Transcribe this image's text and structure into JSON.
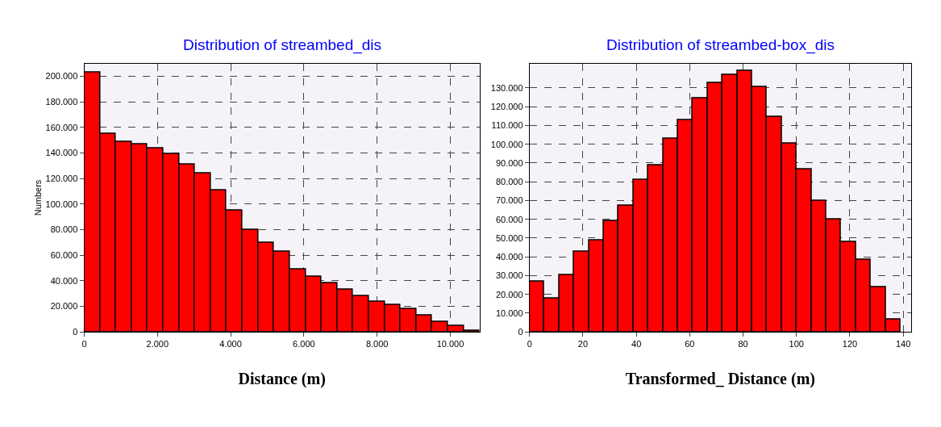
{
  "chart_data": [
    {
      "type": "histogram",
      "title": "Distribution of streambed_dis",
      "xlabel": "Distance (m)",
      "ylabel": "Numbers",
      "color": "#ff0000",
      "grid": true,
      "bins": [
        0,
        432,
        864,
        1296,
        1728,
        2160,
        2592,
        3024,
        3456,
        3888,
        4320,
        4752,
        5184,
        5616,
        6048,
        6480,
        6912,
        7344,
        7776,
        8208,
        8640,
        9072,
        9504,
        9936,
        10368,
        10800
      ],
      "values": [
        203000,
        155000,
        149000,
        147000,
        144000,
        139000,
        131000,
        124000,
        111000,
        95000,
        80000,
        70000,
        63000,
        49000,
        43000,
        38000,
        33000,
        28000,
        24000,
        21000,
        18000,
        13000,
        8000,
        5000,
        1000
      ],
      "xlim": [
        0,
        10800
      ],
      "ylim": [
        0,
        210000
      ],
      "xticks": [
        0,
        {
          "value": 2000,
          "label": "2.000"
        },
        {
          "value": 4000,
          "label": "4.000"
        },
        {
          "value": 6000,
          "label": "6.000"
        },
        {
          "value": 8000,
          "label": "8.000"
        },
        {
          "value": 10000,
          "label": "10.000"
        }
      ],
      "yticks": [
        0,
        {
          "value": 20000,
          "label": "20.000"
        },
        {
          "value": 40000,
          "label": "40.000"
        },
        {
          "value": 60000,
          "label": "60.000"
        },
        {
          "value": 80000,
          "label": "80.000"
        },
        {
          "value": 100000,
          "label": "100.000"
        },
        {
          "value": 120000,
          "label": "120.000"
        },
        {
          "value": 140000,
          "label": "140.000"
        },
        {
          "value": 160000,
          "label": "160.000"
        },
        {
          "value": 180000,
          "label": "180.000"
        },
        {
          "value": 200000,
          "label": "200.000"
        }
      ]
    },
    {
      "type": "histogram",
      "title": "Distribution of streambed-box_dis",
      "xlabel": "Transformed_ Distance (m)",
      "color": "#ff0000",
      "grid": true,
      "bins": [
        0,
        5.56,
        11.12,
        16.68,
        22.24,
        27.8,
        33.36,
        38.92,
        44.48,
        50.04,
        55.6,
        61.16,
        66.72,
        72.28,
        77.84,
        83.4,
        88.96,
        94.52,
        100.08,
        105.64,
        111.2,
        116.76,
        122.32,
        127.88,
        133.44,
        139
      ],
      "values": [
        27000,
        18000,
        30500,
        43000,
        49000,
        59000,
        67500,
        81000,
        89000,
        103000,
        113000,
        124500,
        132500,
        137000,
        139000,
        130500,
        114500,
        100500,
        86500,
        70000,
        60000,
        48000,
        38500,
        24000,
        6500
      ],
      "xlim": [
        0,
        143
      ],
      "ylim": [
        0,
        143000
      ],
      "xticks": [
        0,
        20,
        40,
        60,
        80,
        100,
        120,
        140
      ],
      "yticks": [
        0,
        {
          "value": 10000,
          "label": "10.000"
        },
        {
          "value": 20000,
          "label": "20.000"
        },
        {
          "value": 30000,
          "label": "30.000"
        },
        {
          "value": 40000,
          "label": "40.000"
        },
        {
          "value": 50000,
          "label": "50.000"
        },
        {
          "value": 60000,
          "label": "60.000"
        },
        {
          "value": 70000,
          "label": "70.000"
        },
        {
          "value": 80000,
          "label": "80.000"
        },
        {
          "value": 90000,
          "label": "90.000"
        },
        {
          "value": 100000,
          "label": "100.000"
        },
        {
          "value": 110000,
          "label": "110.000"
        },
        {
          "value": 120000,
          "label": "120.000"
        },
        {
          "value": 130000,
          "label": "130.000"
        }
      ]
    }
  ]
}
